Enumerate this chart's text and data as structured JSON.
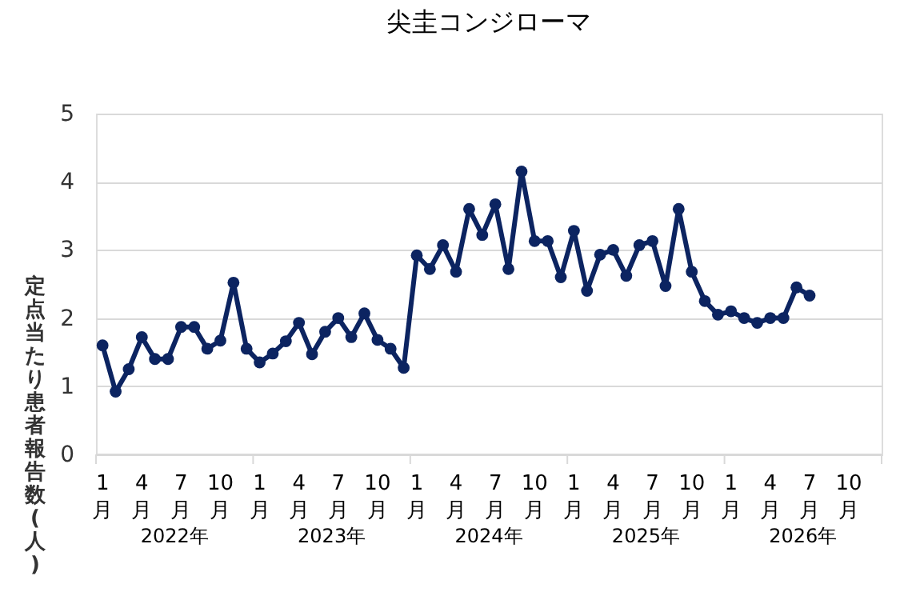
{
  "chart_data": {
    "type": "line",
    "title": "尖圭コンジローマ",
    "ylabel": "定点当たり患者報告数(人)",
    "categories": [
      "1月",
      null,
      null,
      "4月",
      null,
      null,
      "7月",
      null,
      null,
      "10月",
      null,
      null,
      "1月",
      null,
      null,
      "4月",
      null,
      null,
      "7月",
      null,
      null,
      "10月",
      null,
      null,
      "1月",
      null,
      null,
      "4月",
      null,
      null,
      "7月",
      null,
      null,
      "10月",
      null,
      null,
      "1月",
      null,
      null,
      "4月",
      null,
      null,
      "7月",
      null,
      null,
      "10月",
      null,
      null,
      "1月",
      null,
      null,
      "4月",
      null,
      null,
      "7月",
      null,
      null,
      "10月",
      null,
      null
    ],
    "annotations": [
      "2022年",
      "2023年",
      "2024年",
      "2025年",
      "2026年"
    ],
    "series": [
      {
        "color": "#0c2461",
        "values": [
          1.6,
          0.92,
          1.25,
          1.72,
          1.4,
          1.4,
          1.87,
          1.87,
          1.55,
          1.67,
          2.52,
          1.55,
          1.35,
          1.48,
          1.66,
          1.93,
          1.47,
          1.8,
          2.0,
          1.72,
          2.07,
          1.68,
          1.55,
          1.27,
          2.92,
          2.72,
          3.07,
          2.68,
          3.6,
          3.22,
          3.67,
          2.72,
          4.15,
          3.13,
          3.13,
          2.6,
          3.28,
          2.4,
          2.93,
          3.0,
          2.62,
          3.07,
          3.13,
          2.47,
          3.6,
          2.68,
          2.25,
          2.05,
          2.1,
          2.0,
          1.93,
          2.0,
          2.0,
          2.45,
          2.33,
          null,
          null,
          null,
          null,
          null
        ]
      }
    ],
    "ylim": [
      0,
      5
    ],
    "yticks": [
      0,
      1,
      2,
      3,
      4,
      5
    ],
    "grid": "y",
    "marker": "circle",
    "line_style": "solid",
    "legend": false
  }
}
